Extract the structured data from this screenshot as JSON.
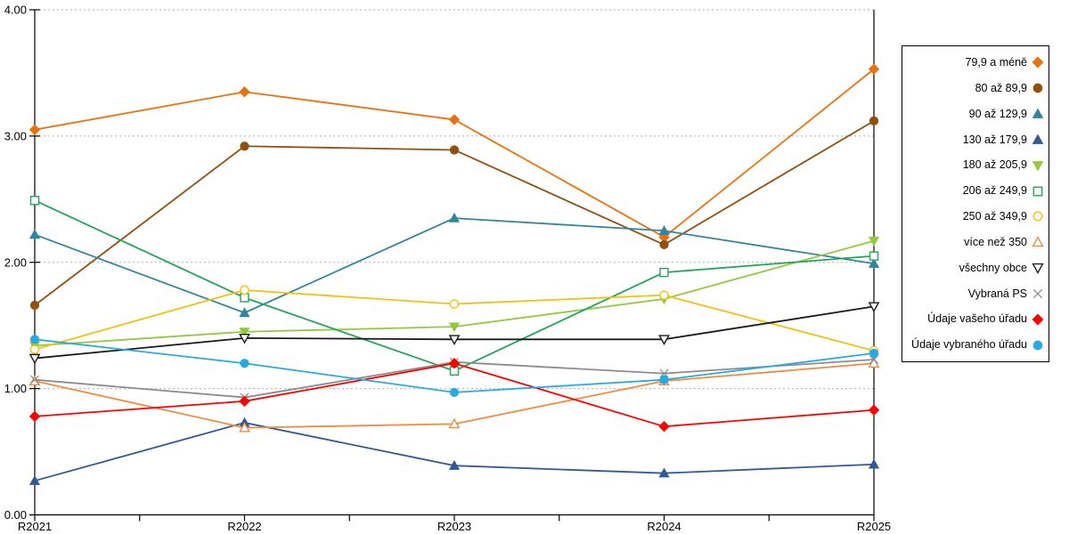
{
  "chart_data": {
    "type": "line",
    "title": "",
    "xlabel": "",
    "ylabel": "",
    "ylim": [
      0,
      4
    ],
    "y_ticks": [
      "0.00",
      "1.00",
      "2.00",
      "3.00",
      "4.00"
    ],
    "grid": "horizontal-dotted",
    "legend_position": "right",
    "categories": [
      "R2021",
      "R2022",
      "R2023",
      "R2024",
      "R2025"
    ],
    "series": [
      {
        "name": "79,9 a méně",
        "color": "#E8720C",
        "marker": "diamond",
        "fill": "solid",
        "values": [
          3.05,
          3.35,
          3.13,
          2.2,
          3.53
        ]
      },
      {
        "name": "80 až 89,9",
        "color": "#92500F",
        "marker": "circle",
        "fill": "solid",
        "values": [
          1.66,
          2.92,
          2.89,
          2.14,
          3.12
        ]
      },
      {
        "name": "90 až 129,9",
        "color": "#31859C",
        "marker": "triangle-up",
        "fill": "solid",
        "values": [
          2.22,
          1.6,
          2.35,
          2.25,
          1.99
        ]
      },
      {
        "name": "130 až 179,9",
        "color": "#305A91",
        "marker": "triangle-up",
        "fill": "solid",
        "values": [
          0.27,
          0.73,
          0.39,
          0.33,
          0.4
        ]
      },
      {
        "name": "180 až 205,9",
        "color": "#94C83D",
        "marker": "triangle-down",
        "fill": "solid",
        "values": [
          1.34,
          1.45,
          1.49,
          1.71,
          2.17
        ]
      },
      {
        "name": "206 až 249,9",
        "color": "#22A45B",
        "marker": "square",
        "fill": "open",
        "values": [
          2.49,
          1.72,
          1.14,
          1.92,
          2.05
        ]
      },
      {
        "name": "250 až 349,9",
        "color": "#F2C00E",
        "marker": "circle",
        "fill": "open",
        "values": [
          1.31,
          1.78,
          1.67,
          1.74,
          1.3
        ]
      },
      {
        "name": "více než 350",
        "color": "#F18B3F",
        "marker": "triangle-up",
        "fill": "open",
        "values": [
          1.06,
          0.69,
          0.72,
          1.06,
          1.2
        ]
      },
      {
        "name": "všechny obce",
        "color": "#1A1A1A",
        "marker": "triangle-down",
        "fill": "open",
        "values": [
          1.24,
          1.4,
          1.39,
          1.39,
          1.65
        ]
      },
      {
        "name": "Vybraná PS",
        "color": "#8C8C8C",
        "marker": "x",
        "fill": "open",
        "values": [
          1.07,
          0.93,
          1.21,
          1.12,
          1.23
        ]
      },
      {
        "name": "Údaje vašeho úřadu",
        "color": "#FE0000",
        "marker": "diamond",
        "fill": "solid",
        "values": [
          0.78,
          0.9,
          1.2,
          0.7,
          0.83
        ]
      },
      {
        "name": "Údaje vybraného úřadu",
        "color": "#27AAE1",
        "marker": "circle",
        "fill": "solid",
        "values": [
          1.39,
          1.2,
          0.97,
          1.07,
          1.28
        ]
      }
    ],
    "colors": {
      "axis": "#000000",
      "gridline": "#AFAFAF",
      "background": "#FFFFFF"
    }
  }
}
